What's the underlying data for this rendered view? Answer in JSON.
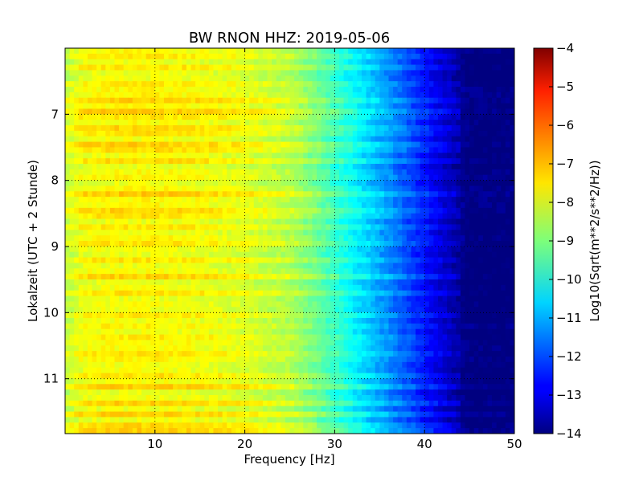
{
  "chart_data": {
    "type": "heatmap",
    "title": "BW RNON HHZ: 2019-05-06",
    "xlabel": "Frequency [Hz]",
    "ylabel": "Lokalzeit (UTC + 2 Stunde)",
    "xlim": [
      0,
      50
    ],
    "ylim": [
      6.0,
      11.83
    ],
    "y_inverted": true,
    "x_ticks": [
      10,
      20,
      30,
      40,
      50
    ],
    "x_tick_labels": [
      "10",
      "20",
      "30",
      "40",
      "50"
    ],
    "y_ticks": [
      7,
      8,
      9,
      10,
      11
    ],
    "y_tick_labels": [
      "7",
      "8",
      "9",
      "10",
      "11"
    ],
    "grid": true,
    "colormap": "jet",
    "colorbar": {
      "label": "Log10(Sqrt(m**2/s**2/Hz))",
      "min": -14,
      "max": -4,
      "ticks": [
        -4,
        -5,
        -6,
        -7,
        -8,
        -9,
        -10,
        -11,
        -12,
        -13,
        -14
      ],
      "tick_labels": [
        "−4",
        "−5",
        "−6",
        "−7",
        "−8",
        "−9",
        "−10",
        "−11",
        "−12",
        "−13",
        "−14"
      ]
    },
    "profile": {
      "description_units": "log10 amplitude vs frequency (Hz)",
      "freq": [
        0,
        2,
        5,
        10,
        15,
        20,
        25,
        28,
        32,
        36,
        40,
        42,
        44,
        45,
        50
      ],
      "value": [
        -8.4,
        -7.9,
        -7.8,
        -7.8,
        -7.9,
        -8.1,
        -8.5,
        -9.2,
        -10.3,
        -11.4,
        -12.6,
        -13.2,
        -13.8,
        -14,
        -14
      ]
    },
    "bright_band_hours": [
      6.1,
      6.3,
      6.55,
      6.8,
      7.0,
      7.25,
      7.5,
      7.7,
      8.2,
      8.5,
      8.7,
      8.95,
      9.2,
      9.45,
      9.7,
      10.05,
      10.35,
      10.65,
      10.95,
      11.1,
      11.35,
      11.55,
      11.75
    ]
  }
}
